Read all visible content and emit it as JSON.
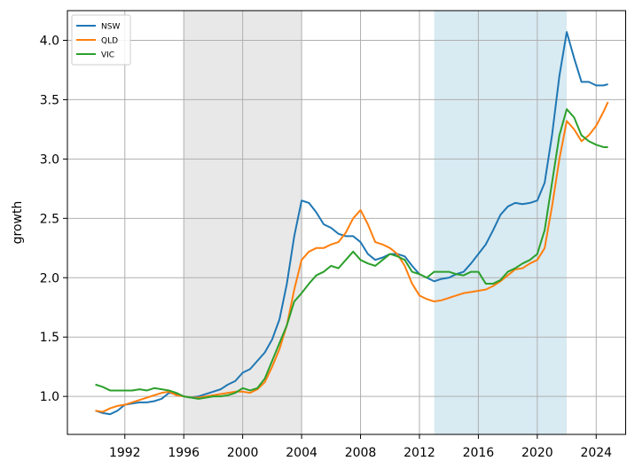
{
  "chart_data": {
    "type": "line",
    "ylabel": "growth",
    "x": [
      1990,
      1990.5,
      1991,
      1991.5,
      1992,
      1992.5,
      1993,
      1993.5,
      1994,
      1994.5,
      1995,
      1995.5,
      1996,
      1996.5,
      1997,
      1997.5,
      1998,
      1998.5,
      1999,
      1999.5,
      2000,
      2000.5,
      2001,
      2001.5,
      2002,
      2002.5,
      2003,
      2003.5,
      2004,
      2004.5,
      2005,
      2005.5,
      2006,
      2006.5,
      2007,
      2007.5,
      2008,
      2008.5,
      2009,
      2009.5,
      2010,
      2010.5,
      2011,
      2011.5,
      2012,
      2012.5,
      2013,
      2013.5,
      2014,
      2014.5,
      2015,
      2015.5,
      2016,
      2016.5,
      2017,
      2017.5,
      2018,
      2018.5,
      2019,
      2019.5,
      2020,
      2020.5,
      2021,
      2021.5,
      2022,
      2022.5,
      2023,
      2023.5,
      2024,
      2024.5,
      2024.8
    ],
    "series": [
      {
        "name": "NSW",
        "color": "#1f77b4",
        "values": [
          0.88,
          0.86,
          0.85,
          0.88,
          0.93,
          0.94,
          0.95,
          0.95,
          0.96,
          0.98,
          1.03,
          1.02,
          1.0,
          0.99,
          1.0,
          1.02,
          1.04,
          1.06,
          1.1,
          1.13,
          1.2,
          1.23,
          1.3,
          1.37,
          1.48,
          1.65,
          1.95,
          2.35,
          2.65,
          2.63,
          2.55,
          2.45,
          2.42,
          2.37,
          2.35,
          2.35,
          2.3,
          2.2,
          2.15,
          2.17,
          2.2,
          2.2,
          2.18,
          2.1,
          2.03,
          2.0,
          1.97,
          1.99,
          2.0,
          2.03,
          2.05,
          2.12,
          2.2,
          2.28,
          2.4,
          2.53,
          2.6,
          2.63,
          2.62,
          2.63,
          2.65,
          2.8,
          3.2,
          3.7,
          4.07,
          3.85,
          3.65,
          3.65,
          3.62,
          3.62,
          3.63
        ]
      },
      {
        "name": "QLD",
        "color": "#ff7f0e",
        "values": [
          0.88,
          0.87,
          0.9,
          0.92,
          0.93,
          0.95,
          0.97,
          0.99,
          1.01,
          1.03,
          1.04,
          1.01,
          1.0,
          0.99,
          0.99,
          1.0,
          1.01,
          1.02,
          1.03,
          1.04,
          1.04,
          1.03,
          1.06,
          1.12,
          1.25,
          1.4,
          1.6,
          1.9,
          2.15,
          2.22,
          2.25,
          2.25,
          2.28,
          2.3,
          2.38,
          2.5,
          2.57,
          2.45,
          2.3,
          2.28,
          2.25,
          2.2,
          2.1,
          1.95,
          1.85,
          1.82,
          1.8,
          1.81,
          1.83,
          1.85,
          1.87,
          1.88,
          1.89,
          1.9,
          1.93,
          1.97,
          2.02,
          2.07,
          2.08,
          2.12,
          2.15,
          2.25,
          2.6,
          3.0,
          3.32,
          3.25,
          3.15,
          3.2,
          3.28,
          3.4,
          3.48
        ]
      },
      {
        "name": "VIC",
        "color": "#2ca02c",
        "values": [
          1.1,
          1.08,
          1.05,
          1.05,
          1.05,
          1.05,
          1.06,
          1.05,
          1.07,
          1.06,
          1.05,
          1.03,
          1.0,
          0.99,
          0.98,
          0.99,
          1.0,
          1.0,
          1.01,
          1.03,
          1.07,
          1.05,
          1.07,
          1.15,
          1.3,
          1.45,
          1.6,
          1.8,
          1.87,
          1.95,
          2.02,
          2.05,
          2.1,
          2.08,
          2.15,
          2.22,
          2.15,
          2.12,
          2.1,
          2.15,
          2.2,
          2.18,
          2.15,
          2.05,
          2.03,
          2.0,
          2.05,
          2.05,
          2.05,
          2.03,
          2.02,
          2.05,
          2.05,
          1.95,
          1.95,
          1.98,
          2.05,
          2.08,
          2.12,
          2.15,
          2.2,
          2.4,
          2.8,
          3.2,
          3.42,
          3.35,
          3.2,
          3.15,
          3.12,
          3.1,
          3.1
        ]
      }
    ],
    "spans": [
      {
        "x": [
          1996,
          2004
        ],
        "color": "#e8e8e8"
      },
      {
        "x": [
          2013,
          2022
        ],
        "color": "#d8eaf2"
      }
    ],
    "xlim": [
      1988.1,
      2026
    ],
    "ylim": [
      0.68,
      4.25
    ],
    "xticks": [
      1992,
      1996,
      2000,
      2004,
      2008,
      2012,
      2016,
      2020,
      2024
    ],
    "yticks": [
      {
        "value": 1,
        "label": "1.0"
      },
      1.5,
      {
        "value": 2,
        "label": "2.0"
      },
      2.5,
      {
        "value": 3,
        "label": "3.0"
      },
      3.5,
      {
        "value": 4,
        "label": "4.0"
      }
    ],
    "grid": true,
    "legend": "upper left"
  }
}
